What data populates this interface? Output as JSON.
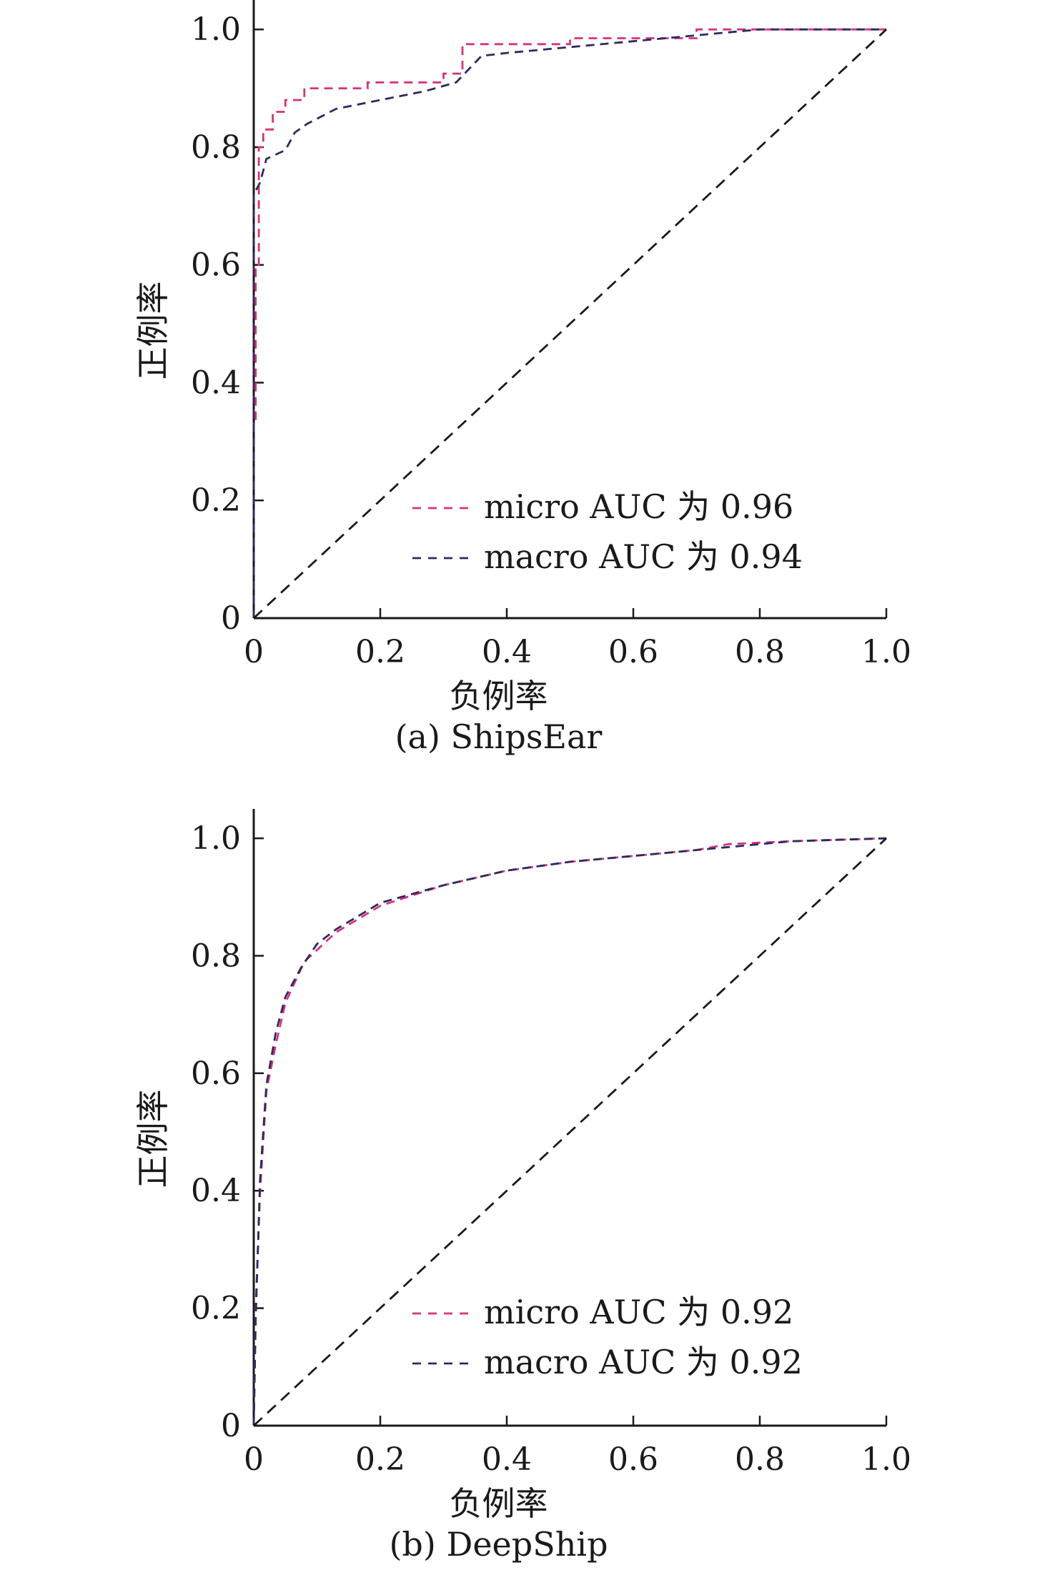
{
  "chart_data": [
    {
      "type": "line",
      "caption": "(a) ShipsEar",
      "xlabel": "负例率",
      "ylabel": "正例率",
      "xlim": [
        0,
        1
      ],
      "ylim": [
        0,
        1.05
      ],
      "xticks": [
        "0",
        "0.2",
        "0.4",
        "0.6",
        "0.8",
        "1.0"
      ],
      "yticks": [
        "0",
        "0.2",
        "0.4",
        "0.6",
        "0.8",
        "1.0"
      ],
      "legend_position": "bottom-right",
      "series": [
        {
          "name": "micro AUC 为 0.96",
          "color": "#d6337a",
          "x": [
            0,
            0,
            0.003,
            0.003,
            0.008,
            0.008,
            0.015,
            0.015,
            0.03,
            0.03,
            0.05,
            0.05,
            0.08,
            0.08,
            0.18,
            0.18,
            0.3,
            0.3,
            0.33,
            0.33,
            0.5,
            0.5,
            0.7,
            0.7,
            1.0
          ],
          "y": [
            0,
            0.33,
            0.33,
            0.6,
            0.6,
            0.8,
            0.8,
            0.83,
            0.83,
            0.86,
            0.86,
            0.88,
            0.88,
            0.9,
            0.9,
            0.91,
            0.91,
            0.925,
            0.925,
            0.975,
            0.975,
            0.985,
            0.985,
            1.0,
            1.0
          ]
        },
        {
          "name": "macro AUC 为 0.94",
          "color": "#2e2a5e",
          "x": [
            0,
            0,
            0.01,
            0.02,
            0.05,
            0.065,
            0.085,
            0.13,
            0.2,
            0.27,
            0.32,
            0.36,
            0.4,
            0.5,
            0.6,
            0.7,
            0.8,
            1.0
          ],
          "y": [
            0,
            0.72,
            0.74,
            0.78,
            0.795,
            0.825,
            0.84,
            0.865,
            0.88,
            0.895,
            0.91,
            0.955,
            0.96,
            0.97,
            0.98,
            0.99,
            1.0,
            1.0
          ]
        },
        {
          "name": "",
          "color": "#1a1a1a",
          "x": [
            0,
            1
          ],
          "y": [
            0,
            1
          ]
        }
      ]
    },
    {
      "type": "line",
      "caption": "(b) DeepShip",
      "xlabel": "负例率",
      "ylabel": "正例率",
      "xlim": [
        0,
        1
      ],
      "ylim": [
        0,
        1.05
      ],
      "xticks": [
        "0",
        "0.2",
        "0.4",
        "0.6",
        "0.8",
        "1.0"
      ],
      "yticks": [
        "0",
        "0.2",
        "0.4",
        "0.6",
        "0.8",
        "1.0"
      ],
      "legend_position": "bottom-right",
      "series": [
        {
          "name": "micro AUC 为 0.92",
          "color": "#d6337a",
          "x": [
            0,
            0.003,
            0.01,
            0.02,
            0.035,
            0.05,
            0.08,
            0.1,
            0.13,
            0.2,
            0.3,
            0.4,
            0.5,
            0.6,
            0.7,
            0.75,
            0.85,
            1.0
          ],
          "y": [
            0,
            0.2,
            0.4,
            0.57,
            0.65,
            0.72,
            0.79,
            0.81,
            0.84,
            0.885,
            0.92,
            0.945,
            0.96,
            0.97,
            0.98,
            0.99,
            0.995,
            1.0
          ]
        },
        {
          "name": "macro AUC 为 0.92",
          "color": "#2e2a5e",
          "x": [
            0,
            0.003,
            0.01,
            0.02,
            0.035,
            0.05,
            0.075,
            0.1,
            0.13,
            0.2,
            0.3,
            0.4,
            0.5,
            0.6,
            0.7,
            0.75,
            0.85,
            1.0
          ],
          "y": [
            0,
            0.18,
            0.42,
            0.58,
            0.67,
            0.73,
            0.78,
            0.82,
            0.845,
            0.89,
            0.92,
            0.945,
            0.96,
            0.97,
            0.98,
            0.985,
            0.995,
            1.0
          ]
        },
        {
          "name": "",
          "color": "#1a1a1a",
          "x": [
            0,
            1
          ],
          "y": [
            0,
            1
          ]
        }
      ]
    }
  ]
}
